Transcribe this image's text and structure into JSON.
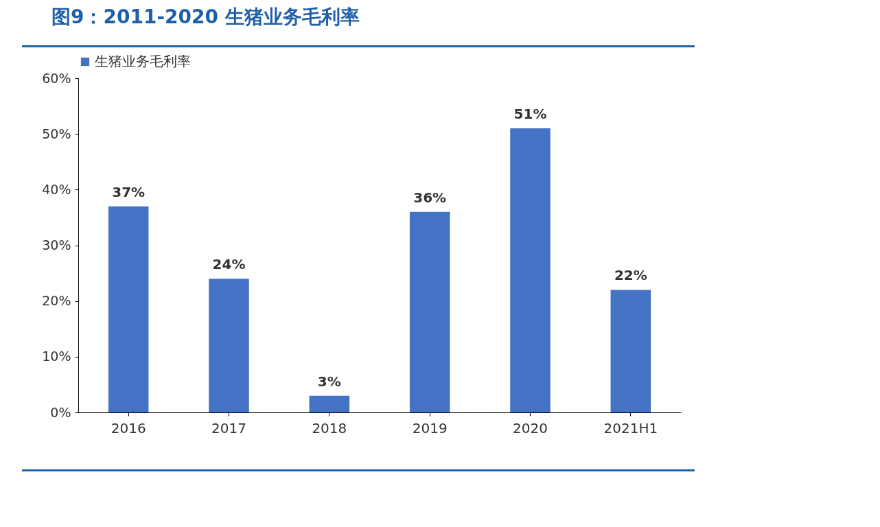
{
  "chart_data": {
    "type": "bar",
    "title": "图9：2011-2020 生猪业务毛利率",
    "categories": [
      "2016",
      "2017",
      "2018",
      "2019",
      "2020",
      "2021H1"
    ],
    "series": [
      {
        "name": "生猪业务毛利率",
        "color": "#4472c4",
        "values": [
          37,
          24,
          3,
          36,
          51,
          22
        ],
        "value_labels": [
          "37%",
          "24%",
          "3%",
          "36%",
          "51%",
          "22%"
        ]
      }
    ],
    "ylim": [
      0,
      60
    ],
    "yticks": [
      {
        "value": 0,
        "label": "0%"
      },
      {
        "value": 10,
        "label": "10%"
      },
      {
        "value": 20,
        "label": "20%"
      },
      {
        "value": 30,
        "label": "30%"
      },
      {
        "value": 40,
        "label": "40%"
      },
      {
        "value": 50,
        "label": "50%"
      },
      {
        "value": 60,
        "label": "60%"
      }
    ],
    "grid": false,
    "legend": "top"
  }
}
